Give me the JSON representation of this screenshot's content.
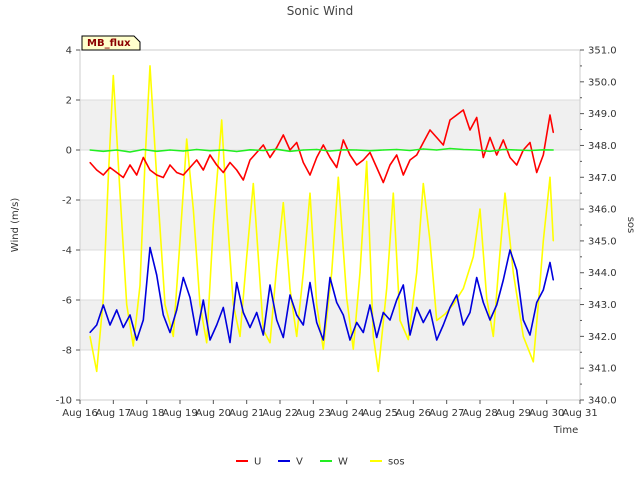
{
  "chart_data": {
    "type": "line",
    "title": "Sonic Wind",
    "site_label": "MB_flux",
    "xlabel": "Time",
    "ylabel_left": "Wind (m/s)",
    "ylabel_right": "sos",
    "x_tick_labels": [
      "Aug 16",
      "Aug 17",
      "Aug 18",
      "Aug 19",
      "Aug 20",
      "Aug 21",
      "Aug 22",
      "Aug 23",
      "Aug 24",
      "Aug 25",
      "Aug 26",
      "Aug 27",
      "Aug 28",
      "Aug 29",
      "Aug 30",
      "Aug 31"
    ],
    "x_range_days": [
      16,
      31
    ],
    "ylim_left": [
      -10,
      4
    ],
    "y_ticks_left": [
      "-10",
      "-8",
      "-6",
      "-4",
      "-2",
      "0",
      "2",
      "4"
    ],
    "ylim_right": [
      340.0,
      351.0
    ],
    "y_ticks_right": [
      "340.0",
      "341.0",
      "342.0",
      "343.0",
      "344.0",
      "345.0",
      "346.0",
      "347.0",
      "348.0",
      "349.0",
      "350.0",
      "351.0"
    ],
    "colors": {
      "U": "#ff0000",
      "V": "#0000dd",
      "W": "#22ee22",
      "sos": "#ffff00",
      "band": "#f0f0f0",
      "grid": "#dddddd",
      "tag_fill": "#ffffcc"
    },
    "series": [
      {
        "name": "U",
        "axis": "left",
        "x": [
          16.3,
          16.5,
          16.7,
          16.9,
          17.1,
          17.3,
          17.5,
          17.7,
          17.9,
          18.1,
          18.3,
          18.5,
          18.7,
          18.9,
          19.1,
          19.3,
          19.5,
          19.7,
          19.9,
          20.1,
          20.3,
          20.5,
          20.7,
          20.9,
          21.1,
          21.3,
          21.5,
          21.7,
          21.9,
          22.1,
          22.3,
          22.5,
          22.7,
          22.9,
          23.1,
          23.3,
          23.5,
          23.7,
          23.9,
          24.1,
          24.3,
          24.5,
          24.7,
          24.9,
          25.1,
          25.3,
          25.5,
          25.7,
          25.9,
          26.1,
          26.3,
          26.5,
          26.7,
          26.9,
          27.1,
          27.3,
          27.5,
          27.7,
          27.9,
          28.1,
          28.3,
          28.5,
          28.7,
          28.9,
          29.1,
          29.3,
          29.5,
          29.7,
          29.9,
          30.1,
          30.2
        ],
        "values": [
          -0.5,
          -0.8,
          -1.0,
          -0.7,
          -0.9,
          -1.1,
          -0.6,
          -1.0,
          -0.3,
          -0.8,
          -1.0,
          -1.1,
          -0.6,
          -0.9,
          -1.0,
          -0.7,
          -0.4,
          -0.8,
          -0.2,
          -0.6,
          -0.9,
          -0.5,
          -0.8,
          -1.2,
          -0.4,
          -0.1,
          0.2,
          -0.3,
          0.1,
          0.6,
          0.0,
          0.3,
          -0.5,
          -1.0,
          -0.3,
          0.2,
          -0.3,
          -0.7,
          0.4,
          -0.2,
          -0.6,
          -0.4,
          -0.1,
          -0.7,
          -1.3,
          -0.6,
          -0.2,
          -1.0,
          -0.4,
          -0.2,
          0.3,
          0.8,
          0.5,
          0.2,
          1.2,
          1.4,
          1.6,
          0.8,
          1.3,
          -0.3,
          0.5,
          -0.2,
          0.4,
          -0.3,
          -0.6,
          0.0,
          0.3,
          -0.9,
          -0.2,
          1.4,
          0.7
        ]
      },
      {
        "name": "V",
        "axis": "left",
        "x": [
          16.3,
          16.5,
          16.7,
          16.9,
          17.1,
          17.3,
          17.5,
          17.7,
          17.9,
          18.1,
          18.3,
          18.5,
          18.7,
          18.9,
          19.1,
          19.3,
          19.5,
          19.7,
          19.9,
          20.1,
          20.3,
          20.5,
          20.7,
          20.9,
          21.1,
          21.3,
          21.5,
          21.7,
          21.9,
          22.1,
          22.3,
          22.5,
          22.7,
          22.9,
          23.1,
          23.3,
          23.5,
          23.7,
          23.9,
          24.1,
          24.3,
          24.5,
          24.7,
          24.9,
          25.1,
          25.3,
          25.5,
          25.7,
          25.9,
          26.1,
          26.3,
          26.5,
          26.7,
          26.9,
          27.1,
          27.3,
          27.5,
          27.7,
          27.9,
          28.1,
          28.3,
          28.5,
          28.7,
          28.9,
          29.1,
          29.3,
          29.5,
          29.7,
          29.9,
          30.1,
          30.2
        ],
        "values": [
          -7.3,
          -7.0,
          -6.2,
          -7.0,
          -6.4,
          -7.1,
          -6.6,
          -7.6,
          -6.8,
          -3.9,
          -5.0,
          -6.6,
          -7.3,
          -6.4,
          -5.1,
          -5.9,
          -7.4,
          -6.0,
          -7.6,
          -7.0,
          -6.3,
          -7.7,
          -5.3,
          -6.5,
          -7.1,
          -6.5,
          -7.4,
          -5.4,
          -6.8,
          -7.5,
          -5.8,
          -6.6,
          -7.0,
          -5.3,
          -6.9,
          -7.6,
          -5.1,
          -6.1,
          -6.6,
          -7.6,
          -6.9,
          -7.3,
          -6.2,
          -7.5,
          -6.5,
          -6.8,
          -6.0,
          -5.4,
          -7.4,
          -6.3,
          -6.9,
          -6.4,
          -7.6,
          -7.0,
          -6.3,
          -5.8,
          -7.0,
          -6.5,
          -5.1,
          -6.1,
          -6.8,
          -6.2,
          -5.2,
          -4.0,
          -4.8,
          -6.8,
          -7.4,
          -6.1,
          -5.6,
          -4.5,
          -5.2
        ]
      },
      {
        "name": "W",
        "axis": "left",
        "x": [
          16.3,
          16.7,
          17.1,
          17.5,
          17.9,
          18.3,
          18.7,
          19.1,
          19.5,
          19.9,
          20.3,
          20.7,
          21.1,
          21.5,
          21.9,
          22.3,
          22.7,
          23.1,
          23.5,
          23.9,
          24.3,
          24.7,
          25.1,
          25.5,
          25.9,
          26.3,
          26.7,
          27.1,
          27.5,
          27.9,
          28.3,
          28.7,
          29.1,
          29.5,
          29.9,
          30.2
        ],
        "values": [
          0.0,
          -0.05,
          0.0,
          -0.08,
          0.02,
          -0.05,
          0.0,
          -0.04,
          0.02,
          -0.03,
          0.0,
          -0.06,
          0.01,
          -0.02,
          0.03,
          -0.05,
          0.0,
          0.02,
          -0.04,
          0.01,
          0.0,
          -0.03,
          0.0,
          0.02,
          -0.02,
          0.04,
          0.0,
          0.06,
          0.02,
          0.0,
          -0.05,
          0.02,
          0.0,
          -0.02,
          0.01,
          0.0
        ]
      },
      {
        "name": "sos",
        "axis": "right",
        "x": [
          16.3,
          16.5,
          16.7,
          16.85,
          17.0,
          17.2,
          17.4,
          17.6,
          17.8,
          17.95,
          18.1,
          18.3,
          18.55,
          18.8,
          19.0,
          19.2,
          19.4,
          19.6,
          19.8,
          20.0,
          20.25,
          20.4,
          20.6,
          20.8,
          21.0,
          21.2,
          21.35,
          21.5,
          21.7,
          21.9,
          22.1,
          22.3,
          22.5,
          22.7,
          22.9,
          23.1,
          23.3,
          23.55,
          23.75,
          24.0,
          24.2,
          24.4,
          24.6,
          24.8,
          24.95,
          25.2,
          25.4,
          25.6,
          25.85,
          26.1,
          26.3,
          26.5,
          26.7,
          26.95,
          27.2,
          27.5,
          27.8,
          28.0,
          28.2,
          28.4,
          28.55,
          28.75,
          29.0,
          29.3,
          29.6,
          29.75,
          29.9,
          30.1,
          30.2
        ],
        "values": [
          342.0,
          340.9,
          343.2,
          347.0,
          350.2,
          346.5,
          343.0,
          341.7,
          343.6,
          347.5,
          350.5,
          347.0,
          343.0,
          342.0,
          345.0,
          348.2,
          346.0,
          343.0,
          341.8,
          345.5,
          348.8,
          346.0,
          343.0,
          342.0,
          344.5,
          346.8,
          344.5,
          342.2,
          341.8,
          344.2,
          346.2,
          343.5,
          342.0,
          344.0,
          346.5,
          343.0,
          341.6,
          344.0,
          347.0,
          343.2,
          341.6,
          344.0,
          347.5,
          342.0,
          340.9,
          343.5,
          346.5,
          342.5,
          341.9,
          344.0,
          346.8,
          345.0,
          342.5,
          342.7,
          343.0,
          343.5,
          344.5,
          346.0,
          343.2,
          342.0,
          344.0,
          346.5,
          344.0,
          342.0,
          341.2,
          343.0,
          345.0,
          347.0,
          345.0
        ]
      }
    ],
    "legend": [
      "U",
      "V",
      "W",
      "sos"
    ],
    "legend_position": "bottom-center"
  }
}
